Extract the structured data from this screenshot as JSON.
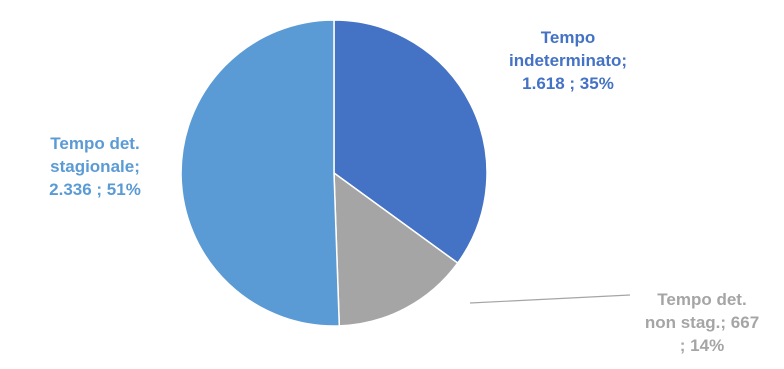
{
  "chart_data": {
    "type": "pie",
    "title": "",
    "legend": "none",
    "slices": [
      {
        "name": "Tempo indeterminato",
        "value": 1618,
        "value_label": "1.618",
        "percent": 35,
        "color": "#4472C4",
        "label_lines": [
          "Tempo",
          "indeterminato;",
          "1.618 ; 35%"
        ]
      },
      {
        "name": "Tempo det. non stag.",
        "value": 667,
        "value_label": "667",
        "percent": 14,
        "color": "#A5A5A5",
        "label_lines": [
          "Tempo det.",
          "non stag.;  667",
          "; 14%"
        ]
      },
      {
        "name": "Tempo det. stagionale",
        "value": 2336,
        "value_label": "2.336",
        "percent": 51,
        "color": "#5B9BD5",
        "label_lines": [
          "Tempo  det.",
          "stagionale;",
          "2.336 ; 51%"
        ]
      }
    ]
  }
}
